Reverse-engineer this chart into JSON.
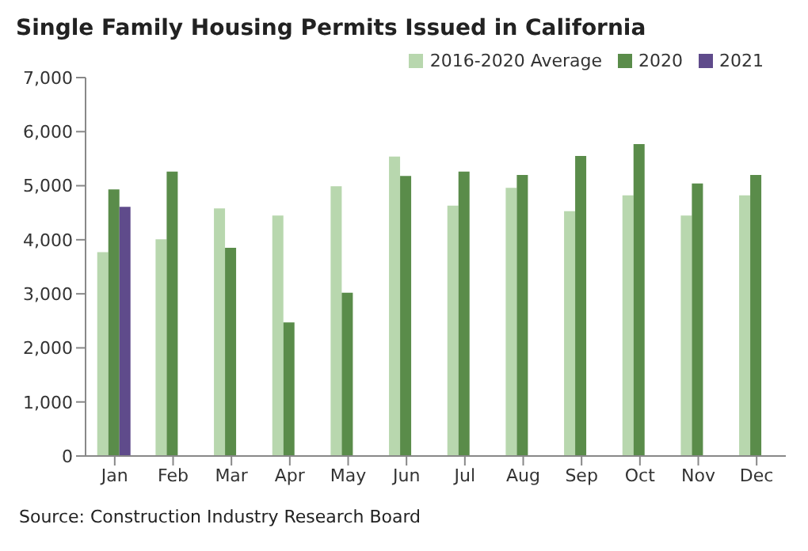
{
  "chart_data": {
    "type": "bar",
    "title": "Single Family Housing Permits Issued in California",
    "categories": [
      "Jan",
      "Feb",
      "Mar",
      "Apr",
      "May",
      "Jun",
      "Jul",
      "Aug",
      "Sep",
      "Oct",
      "Nov",
      "Dec"
    ],
    "series": [
      {
        "name": "2016-2020 Average",
        "color": "#b8d7ae",
        "values": [
          3770,
          4010,
          4580,
          4450,
          4990,
          5540,
          4630,
          4960,
          4530,
          4820,
          4450,
          4820
        ]
      },
      {
        "name": "2020",
        "color": "#5a8c4a",
        "values": [
          4930,
          5260,
          3850,
          2470,
          3020,
          5180,
          5260,
          5200,
          5550,
          5770,
          5040,
          5200
        ]
      },
      {
        "name": "2021",
        "color": "#5f4b8b",
        "values": [
          4610,
          null,
          null,
          null,
          null,
          null,
          null,
          null,
          null,
          null,
          null,
          null
        ]
      }
    ],
    "ylim": [
      0,
      7000
    ],
    "yticks": [
      0,
      {
        "value": 1000,
        "label": "1,000"
      },
      {
        "value": 2000,
        "label": "2,000"
      },
      {
        "value": 3000,
        "label": "3,000"
      },
      {
        "value": 4000,
        "label": "4,000"
      },
      {
        "value": 5000,
        "label": "5,000"
      },
      {
        "value": 6000,
        "label": "6,000"
      },
      {
        "value": 7000,
        "label": "7,000"
      }
    ],
    "grid": false,
    "legend": "top right",
    "annotations": [
      "Source: Construction Industry Research Board"
    ]
  }
}
